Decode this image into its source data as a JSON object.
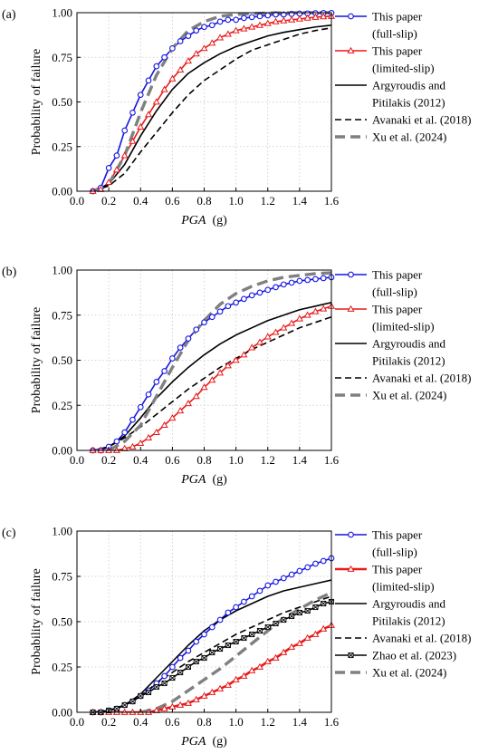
{
  "chart_data": [
    {
      "type": "line",
      "panel_label": "(a)",
      "xlabel": "PGA",
      "xunit": "(g)",
      "ylabel": "Probability of failure",
      "xlim": [
        0,
        1.6
      ],
      "ylim": [
        0,
        1
      ],
      "xticks": [
        "0.0",
        "0.2",
        "0.4",
        "0.6",
        "0.8",
        "1.0",
        "1.2",
        "1.4",
        "1.6"
      ],
      "yticks": [
        "0.00",
        "0.25",
        "0.50",
        "0.75",
        "1.00"
      ],
      "grid": true,
      "legend": "right",
      "series": [
        {
          "name_lines": [
            "This paper",
            "(full-slip)"
          ],
          "color": "#1515e0",
          "style": "solid",
          "marker": "circle",
          "x": [
            0.1,
            0.15,
            0.2,
            0.25,
            0.3,
            0.35,
            0.4,
            0.45,
            0.5,
            0.55,
            0.6,
            0.65,
            0.7,
            0.75,
            0.8,
            0.85,
            0.9,
            0.95,
            1.0,
            1.05,
            1.1,
            1.15,
            1.2,
            1.25,
            1.3,
            1.35,
            1.4,
            1.45,
            1.5,
            1.55,
            1.6
          ],
          "y": [
            0.0,
            0.02,
            0.13,
            0.2,
            0.34,
            0.44,
            0.54,
            0.62,
            0.7,
            0.75,
            0.8,
            0.84,
            0.87,
            0.9,
            0.92,
            0.93,
            0.95,
            0.96,
            0.96,
            0.97,
            0.975,
            0.98,
            0.985,
            0.99,
            0.99,
            0.993,
            0.995,
            0.996,
            0.997,
            0.998,
            0.998
          ]
        },
        {
          "name_lines": [
            "This paper",
            "(limited-slip)"
          ],
          "color": "#e81a1a",
          "style": "solid",
          "marker": "triangle",
          "x": [
            0.1,
            0.15,
            0.2,
            0.25,
            0.3,
            0.35,
            0.4,
            0.45,
            0.5,
            0.55,
            0.6,
            0.65,
            0.7,
            0.75,
            0.8,
            0.85,
            0.9,
            0.95,
            1.0,
            1.05,
            1.1,
            1.15,
            1.2,
            1.25,
            1.3,
            1.35,
            1.4,
            1.45,
            1.5,
            1.55,
            1.6
          ],
          "y": [
            0.0,
            0.01,
            0.05,
            0.12,
            0.2,
            0.28,
            0.36,
            0.43,
            0.5,
            0.57,
            0.63,
            0.68,
            0.73,
            0.77,
            0.8,
            0.83,
            0.86,
            0.88,
            0.9,
            0.91,
            0.92,
            0.93,
            0.94,
            0.95,
            0.955,
            0.96,
            0.965,
            0.97,
            0.975,
            0.978,
            0.98
          ]
        },
        {
          "name_lines": [
            "Argyroudis and",
            "Pitilakis (2012)"
          ],
          "color": "#000000",
          "style": "solid",
          "marker": "none",
          "x": [
            0.1,
            0.2,
            0.3,
            0.4,
            0.5,
            0.6,
            0.7,
            0.8,
            0.9,
            1.0,
            1.1,
            1.2,
            1.3,
            1.4,
            1.5,
            1.6
          ],
          "y": [
            0.0,
            0.04,
            0.15,
            0.31,
            0.45,
            0.57,
            0.66,
            0.72,
            0.77,
            0.81,
            0.84,
            0.87,
            0.89,
            0.905,
            0.92,
            0.93
          ]
        },
        {
          "name_lines": [
            "Avanaki et al. (2018)"
          ],
          "color": "#000000",
          "style": "dashed",
          "marker": "none",
          "x": [
            0.1,
            0.2,
            0.3,
            0.4,
            0.5,
            0.6,
            0.7,
            0.8,
            0.9,
            1.0,
            1.1,
            1.2,
            1.3,
            1.4,
            1.5,
            1.6
          ],
          "y": [
            0.0,
            0.03,
            0.1,
            0.22,
            0.33,
            0.44,
            0.54,
            0.62,
            0.68,
            0.74,
            0.79,
            0.82,
            0.85,
            0.88,
            0.9,
            0.915
          ]
        },
        {
          "name_lines": [
            "Xu et al. (2024)"
          ],
          "color": "#808080",
          "style": "thickdash",
          "marker": "none",
          "x": [
            0.1,
            0.2,
            0.3,
            0.4,
            0.5,
            0.6,
            0.7,
            0.8,
            0.9,
            1.0,
            1.1,
            1.2,
            1.3,
            1.4,
            1.5,
            1.6
          ],
          "y": [
            0.0,
            0.04,
            0.2,
            0.44,
            0.65,
            0.8,
            0.9,
            0.95,
            0.98,
            0.99,
            0.995,
            0.998,
            0.999,
            1.0,
            1.0,
            1.0
          ]
        }
      ]
    },
    {
      "type": "line",
      "panel_label": "(b)",
      "xlabel": "PGA",
      "xunit": "(g)",
      "ylabel": "Probability of failure",
      "xlim": [
        0,
        1.6
      ],
      "ylim": [
        0,
        1
      ],
      "xticks": [
        "0.0",
        "0.2",
        "0.4",
        "0.6",
        "0.8",
        "1.0",
        "1.2",
        "1.4",
        "1.6"
      ],
      "yticks": [
        "0.00",
        "0.25",
        "0.50",
        "0.75",
        "1.00"
      ],
      "grid": true,
      "legend": "right",
      "series": [
        {
          "name_lines": [
            "This paper",
            "(full-slip)"
          ],
          "color": "#1515e0",
          "style": "solid",
          "marker": "circle",
          "x": [
            0.1,
            0.15,
            0.2,
            0.25,
            0.3,
            0.35,
            0.4,
            0.45,
            0.5,
            0.55,
            0.6,
            0.65,
            0.7,
            0.75,
            0.8,
            0.85,
            0.9,
            0.95,
            1.0,
            1.05,
            1.1,
            1.15,
            1.2,
            1.25,
            1.3,
            1.35,
            1.4,
            1.45,
            1.5,
            1.55,
            1.6
          ],
          "y": [
            0.0,
            0.0,
            0.02,
            0.05,
            0.1,
            0.17,
            0.24,
            0.31,
            0.38,
            0.44,
            0.51,
            0.57,
            0.62,
            0.67,
            0.71,
            0.74,
            0.77,
            0.8,
            0.82,
            0.84,
            0.86,
            0.875,
            0.89,
            0.905,
            0.92,
            0.93,
            0.94,
            0.945,
            0.95,
            0.955,
            0.96
          ]
        },
        {
          "name_lines": [
            "This paper",
            "(limited-slip)"
          ],
          "color": "#e81a1a",
          "style": "solid",
          "marker": "triangle",
          "x": [
            0.1,
            0.15,
            0.2,
            0.25,
            0.3,
            0.35,
            0.4,
            0.45,
            0.5,
            0.55,
            0.6,
            0.65,
            0.7,
            0.75,
            0.8,
            0.85,
            0.9,
            0.95,
            1.0,
            1.05,
            1.1,
            1.15,
            1.2,
            1.25,
            1.3,
            1.35,
            1.4,
            1.45,
            1.5,
            1.55,
            1.6
          ],
          "y": [
            0.0,
            0.0,
            0.0,
            0.0,
            0.01,
            0.02,
            0.04,
            0.07,
            0.1,
            0.14,
            0.18,
            0.22,
            0.26,
            0.3,
            0.35,
            0.39,
            0.43,
            0.47,
            0.5,
            0.53,
            0.57,
            0.6,
            0.63,
            0.655,
            0.68,
            0.705,
            0.73,
            0.75,
            0.77,
            0.785,
            0.8
          ]
        },
        {
          "name_lines": [
            "Argyroudis and",
            "Pitilakis (2012)"
          ],
          "color": "#000000",
          "style": "solid",
          "marker": "none",
          "x": [
            0.1,
            0.2,
            0.3,
            0.4,
            0.5,
            0.6,
            0.7,
            0.8,
            0.9,
            1.0,
            1.1,
            1.2,
            1.3,
            1.4,
            1.5,
            1.6
          ],
          "y": [
            0.0,
            0.02,
            0.08,
            0.18,
            0.29,
            0.38,
            0.46,
            0.53,
            0.59,
            0.64,
            0.68,
            0.72,
            0.75,
            0.78,
            0.8,
            0.82
          ]
        },
        {
          "name_lines": [
            "Avanaki et al. (2018)"
          ],
          "color": "#000000",
          "style": "dashed",
          "marker": "none",
          "x": [
            0.1,
            0.2,
            0.3,
            0.4,
            0.5,
            0.6,
            0.7,
            0.8,
            0.9,
            1.0,
            1.1,
            1.2,
            1.3,
            1.4,
            1.5,
            1.6
          ],
          "y": [
            0.0,
            0.02,
            0.07,
            0.13,
            0.2,
            0.27,
            0.34,
            0.4,
            0.46,
            0.51,
            0.56,
            0.6,
            0.64,
            0.68,
            0.71,
            0.74
          ]
        },
        {
          "name_lines": [
            "Xu et al. (2024)"
          ],
          "color": "#808080",
          "style": "thickdash",
          "marker": "none",
          "x": [
            0.1,
            0.2,
            0.3,
            0.4,
            0.5,
            0.6,
            0.7,
            0.8,
            0.9,
            1.0,
            1.1,
            1.2,
            1.3,
            1.4,
            1.5,
            1.6
          ],
          "y": [
            0.0,
            0.0,
            0.05,
            0.14,
            0.3,
            0.46,
            0.61,
            0.72,
            0.81,
            0.87,
            0.91,
            0.94,
            0.96,
            0.97,
            0.98,
            0.985
          ]
        }
      ]
    },
    {
      "type": "line",
      "panel_label": "(c)",
      "xlabel": "PGA",
      "xunit": "(g)",
      "ylabel": "Probability of failure",
      "xlim": [
        0,
        1.6
      ],
      "ylim": [
        0,
        1
      ],
      "xticks": [
        "0.0",
        "0.2",
        "0.4",
        "0.6",
        "0.8",
        "1.0",
        "1.2",
        "1.4",
        "1.6"
      ],
      "yticks": [
        "0.00",
        "0.25",
        "0.50",
        "0.75",
        "1.00"
      ],
      "grid": true,
      "legend": "right",
      "series": [
        {
          "name_lines": [
            "This paper",
            "(full-slip)"
          ],
          "color": "#1515e0",
          "style": "solid",
          "marker": "circle",
          "x": [
            0.1,
            0.15,
            0.2,
            0.25,
            0.3,
            0.35,
            0.4,
            0.45,
            0.5,
            0.55,
            0.6,
            0.65,
            0.7,
            0.75,
            0.8,
            0.85,
            0.9,
            0.95,
            1.0,
            1.05,
            1.1,
            1.15,
            1.2,
            1.25,
            1.3,
            1.35,
            1.4,
            1.45,
            1.5,
            1.55,
            1.6
          ],
          "y": [
            0.0,
            0.0,
            0.01,
            0.02,
            0.04,
            0.06,
            0.09,
            0.12,
            0.16,
            0.2,
            0.25,
            0.3,
            0.34,
            0.39,
            0.43,
            0.47,
            0.51,
            0.55,
            0.58,
            0.61,
            0.64,
            0.67,
            0.7,
            0.72,
            0.74,
            0.76,
            0.78,
            0.8,
            0.82,
            0.835,
            0.85
          ]
        },
        {
          "name_lines": [
            "This paper",
            "(limited-slip)"
          ],
          "color": "#e81a1a",
          "style": "bold",
          "marker": "triangle",
          "x": [
            0.1,
            0.15,
            0.2,
            0.25,
            0.3,
            0.35,
            0.4,
            0.45,
            0.5,
            0.55,
            0.6,
            0.65,
            0.7,
            0.75,
            0.8,
            0.85,
            0.9,
            0.95,
            1.0,
            1.05,
            1.1,
            1.15,
            1.2,
            1.25,
            1.3,
            1.35,
            1.4,
            1.45,
            1.5,
            1.55,
            1.6
          ],
          "y": [
            0.0,
            0.0,
            0.0,
            0.0,
            0.0,
            0.0,
            0.0,
            0.0,
            0.01,
            0.02,
            0.03,
            0.04,
            0.05,
            0.07,
            0.09,
            0.11,
            0.13,
            0.15,
            0.18,
            0.2,
            0.23,
            0.25,
            0.28,
            0.3,
            0.33,
            0.36,
            0.38,
            0.41,
            0.43,
            0.46,
            0.48
          ]
        },
        {
          "name_lines": [
            "Argyroudis and",
            "Pitilakis (2012)"
          ],
          "color": "#000000",
          "style": "solid",
          "marker": "none",
          "x": [
            0.1,
            0.2,
            0.3,
            0.4,
            0.5,
            0.6,
            0.7,
            0.8,
            0.9,
            1.0,
            1.1,
            1.2,
            1.3,
            1.4,
            1.5,
            1.6
          ],
          "y": [
            0.0,
            0.01,
            0.04,
            0.1,
            0.19,
            0.28,
            0.37,
            0.45,
            0.51,
            0.56,
            0.6,
            0.64,
            0.67,
            0.69,
            0.71,
            0.73
          ]
        },
        {
          "name_lines": [
            "Avanaki et al. (2018)"
          ],
          "color": "#000000",
          "style": "dashed",
          "marker": "none",
          "x": [
            0.1,
            0.2,
            0.3,
            0.4,
            0.5,
            0.6,
            0.7,
            0.8,
            0.9,
            1.0,
            1.1,
            1.2,
            1.3,
            1.4,
            1.5,
            1.6
          ],
          "y": [
            0.0,
            0.01,
            0.04,
            0.09,
            0.16,
            0.22,
            0.28,
            0.33,
            0.38,
            0.43,
            0.47,
            0.51,
            0.55,
            0.58,
            0.61,
            0.64
          ]
        },
        {
          "name_lines": [
            "Zhao et al. (2023)"
          ],
          "color": "#000000",
          "style": "solid",
          "marker": "x",
          "x": [
            0.1,
            0.15,
            0.2,
            0.25,
            0.3,
            0.35,
            0.4,
            0.45,
            0.5,
            0.55,
            0.6,
            0.65,
            0.7,
            0.75,
            0.8,
            0.85,
            0.9,
            0.95,
            1.0,
            1.05,
            1.1,
            1.15,
            1.2,
            1.25,
            1.3,
            1.35,
            1.4,
            1.45,
            1.5,
            1.55,
            1.6
          ],
          "y": [
            0.0,
            0.0,
            0.01,
            0.02,
            0.04,
            0.06,
            0.09,
            0.11,
            0.14,
            0.16,
            0.19,
            0.22,
            0.25,
            0.28,
            0.3,
            0.33,
            0.35,
            0.37,
            0.39,
            0.41,
            0.43,
            0.45,
            0.47,
            0.49,
            0.51,
            0.53,
            0.55,
            0.56,
            0.58,
            0.6,
            0.61
          ]
        },
        {
          "name_lines": [
            "Xu et al. (2024)"
          ],
          "color": "#808080",
          "style": "thickdash",
          "marker": "none",
          "x": [
            0.4,
            0.5,
            0.6,
            0.7,
            0.8,
            0.9,
            1.0,
            1.1,
            1.2,
            1.3,
            1.4,
            1.5,
            1.6
          ],
          "y": [
            0.0,
            0.02,
            0.06,
            0.12,
            0.18,
            0.24,
            0.31,
            0.38,
            0.45,
            0.52,
            0.57,
            0.62,
            0.66
          ]
        }
      ]
    }
  ]
}
